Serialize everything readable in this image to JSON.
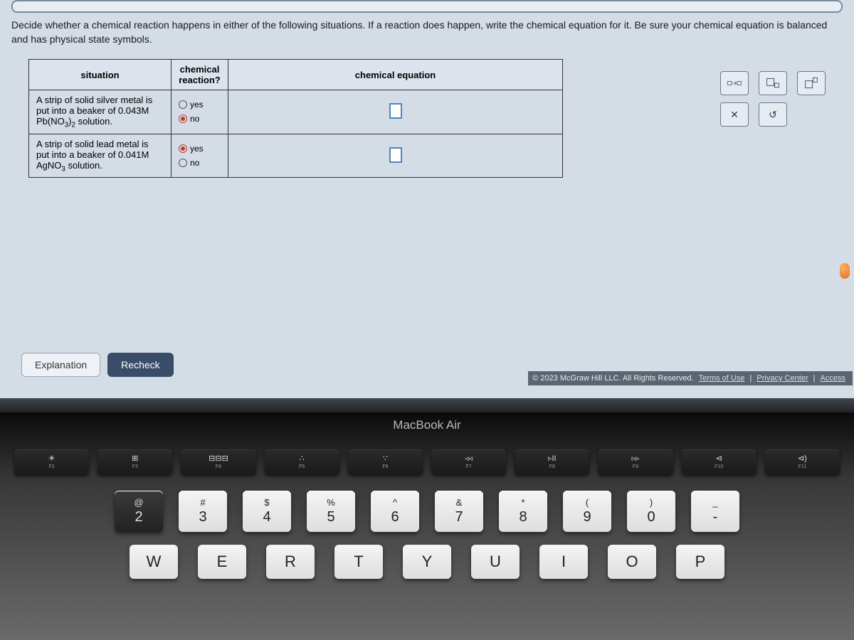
{
  "instructions": "Decide whether a chemical reaction happens in either of the following situations. If a reaction does happen, write the chemical equation for it. Be sure your chemical equation is balanced and has physical state symbols.",
  "table": {
    "headers": {
      "situation": "situation",
      "reaction": "chemical reaction?",
      "equation": "chemical equation"
    },
    "rows": [
      {
        "situation_pre": "A strip of solid silver metal is put into a beaker of 0.043M Pb(NO",
        "situation_sub": "3",
        "situation_post": ")",
        "situation_sub2": "2",
        "situation_end": " solution.",
        "yes_label": "yes",
        "no_label": "no",
        "selected": "no"
      },
      {
        "situation_pre": "A strip of solid lead metal is put into a beaker of 0.041M AgNO",
        "situation_sub": "3",
        "situation_post": " solution.",
        "situation_sub2": "",
        "situation_end": "",
        "yes_label": "yes",
        "no_label": "no",
        "selected": "yes"
      }
    ]
  },
  "toolbox": {
    "arrow": "☐→☐",
    "sub_btn": "☐",
    "sup_btn": "☐",
    "clear": "✕",
    "reset": "↺"
  },
  "buttons": {
    "explanation": "Explanation",
    "recheck": "Recheck"
  },
  "footer": {
    "copyright": "© 2023 McGraw Hill LLC. All Rights Reserved.",
    "terms": "Terms of Use",
    "privacy": "Privacy Center",
    "access": "Access"
  },
  "laptop": {
    "bezel": "MacBook Air",
    "fn": [
      {
        "icon": "☀",
        "lbl": "F2"
      },
      {
        "icon": "⊞",
        "lbl": "F3"
      },
      {
        "icon": "⊟⊟⊟",
        "lbl": "F4"
      },
      {
        "icon": "∴",
        "lbl": "F5"
      },
      {
        "icon": "∵",
        "lbl": "F6"
      },
      {
        "icon": "◃◃",
        "lbl": "F7"
      },
      {
        "icon": "▹II",
        "lbl": "F8"
      },
      {
        "icon": "▹▹",
        "lbl": "F9"
      },
      {
        "icon": "⊲",
        "lbl": "F10"
      },
      {
        "icon": "⊲)",
        "lbl": "F11"
      }
    ],
    "num": [
      {
        "u": "@",
        "l": "2",
        "dark": true
      },
      {
        "u": "#",
        "l": "3"
      },
      {
        "u": "$",
        "l": "4"
      },
      {
        "u": "%",
        "l": "5"
      },
      {
        "u": "^",
        "l": "6"
      },
      {
        "u": "&",
        "l": "7"
      },
      {
        "u": "*",
        "l": "8"
      },
      {
        "u": "(",
        "l": "9"
      },
      {
        "u": ")",
        "l": "0"
      },
      {
        "u": "_",
        "l": "-"
      }
    ],
    "letters": [
      "W",
      "E",
      "R",
      "T",
      "Y",
      "U",
      "I",
      "O",
      "P"
    ]
  },
  "colors": {
    "screen_bg": "#d4dce5",
    "accent_blue": "#4a88c7",
    "selected_red": "#c0392b",
    "button_dark": "#3a4d68"
  }
}
